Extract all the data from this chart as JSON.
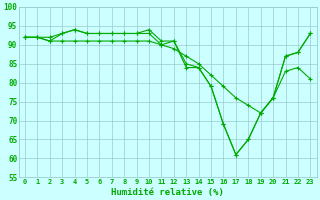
{
  "x": [
    0,
    1,
    2,
    3,
    4,
    5,
    6,
    7,
    8,
    9,
    10,
    11,
    12,
    13,
    14,
    15,
    16,
    17,
    18,
    19,
    20,
    21,
    22,
    23
  ],
  "line1": [
    92,
    92,
    92,
    93,
    94,
    93,
    93,
    93,
    93,
    93,
    94,
    91,
    91,
    84,
    84,
    79,
    69,
    61,
    65,
    72,
    76,
    87,
    88,
    93
  ],
  "line2": [
    92,
    92,
    91,
    93,
    94,
    93,
    93,
    93,
    93,
    93,
    93,
    90,
    91,
    85,
    84,
    79,
    69,
    61,
    65,
    72,
    76,
    87,
    88,
    93
  ],
  "line3": [
    92,
    92,
    91,
    91,
    91,
    91,
    91,
    91,
    91,
    91,
    91,
    90,
    89,
    87,
    85,
    82,
    79,
    76,
    74,
    72,
    76,
    83,
    84,
    81
  ],
  "bg_color": "#ccffff",
  "grid_color": "#99cccc",
  "line_color": "#00aa00",
  "xlabel": "Humidité relative (%)",
  "ylim": [
    55,
    100
  ],
  "xlim_min": -0.5,
  "xlim_max": 23.5,
  "yticks": [
    55,
    60,
    65,
    70,
    75,
    80,
    85,
    90,
    95,
    100
  ],
  "xticks": [
    0,
    1,
    2,
    3,
    4,
    5,
    6,
    7,
    8,
    9,
    10,
    11,
    12,
    13,
    14,
    15,
    16,
    17,
    18,
    19,
    20,
    21,
    22,
    23
  ],
  "xtick_fontsize": 5.0,
  "ytick_fontsize": 5.5,
  "xlabel_fontsize": 6.5,
  "line_width": 0.8,
  "marker_size": 3.0,
  "marker_ew": 0.8
}
